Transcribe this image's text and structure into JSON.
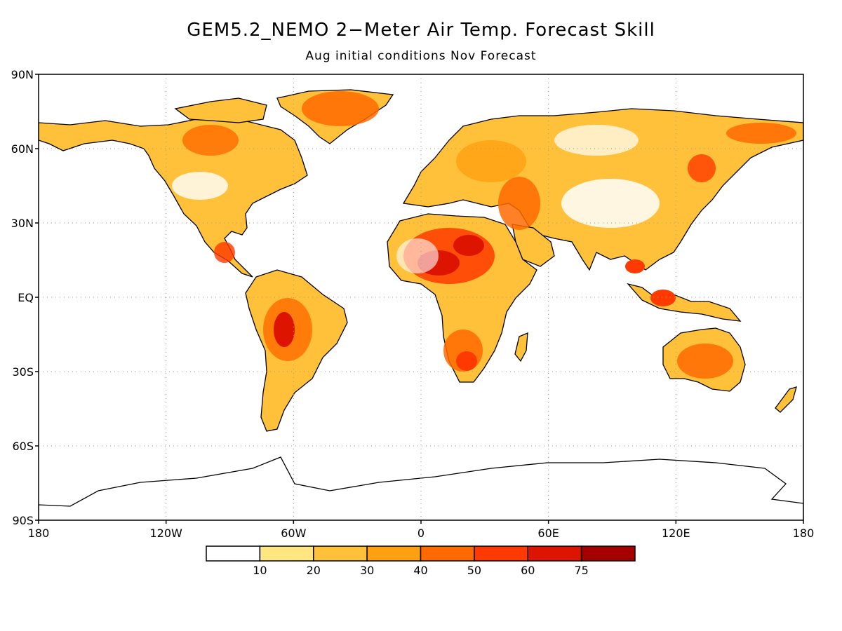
{
  "title": "GEM5.2_NEMO 2−Meter Air Temp. Forecast Skill",
  "subtitle": "Aug initial conditions   Nov Forecast",
  "lat_axis": {
    "ticks": [
      {
        "value": 90,
        "label": "90N"
      },
      {
        "value": 60,
        "label": "60N"
      },
      {
        "value": 30,
        "label": "30N"
      },
      {
        "value": 0,
        "label": "EQ"
      },
      {
        "value": -30,
        "label": "30S"
      },
      {
        "value": -60,
        "label": "60S"
      },
      {
        "value": -90,
        "label": "90S"
      }
    ]
  },
  "lon_axis": {
    "ticks": [
      {
        "value": -180,
        "label": "180"
      },
      {
        "value": -120,
        "label": "120W"
      },
      {
        "value": -60,
        "label": "60W"
      },
      {
        "value": 0,
        "label": "0"
      },
      {
        "value": 60,
        "label": "60E"
      },
      {
        "value": 120,
        "label": "120E"
      },
      {
        "value": 180,
        "label": "180"
      }
    ]
  },
  "colorbar": {
    "labels": [
      "10",
      "20",
      "30",
      "40",
      "50",
      "60",
      "75"
    ],
    "colors": [
      "#ffffff",
      "#ffe680",
      "#ffc13a",
      "#ffa010",
      "#ff6a00",
      "#ff3a00",
      "#dd1500",
      "#a50000"
    ]
  },
  "colors": {
    "land_outline": "#000000",
    "grid": "#999999"
  }
}
